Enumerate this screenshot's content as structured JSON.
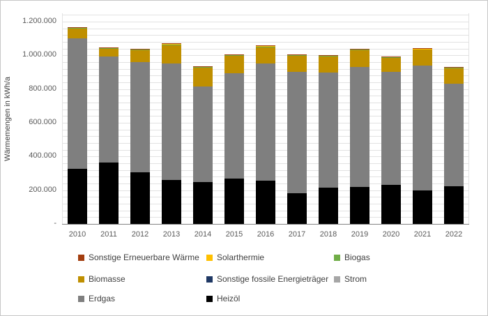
{
  "y_axis": {
    "title": "Wärmemengen in kWh/a",
    "tick_labels": [
      "-",
      "200.000",
      "400.000",
      "600.000",
      "800.000",
      "1.000.000",
      "1.200.000"
    ],
    "tick_values": [
      0,
      200000,
      400000,
      600000,
      800000,
      1000000,
      1200000
    ],
    "minor_gridline_step": 40000,
    "plot_max": 1250000
  },
  "chart_data": {
    "type": "bar",
    "stacked": true,
    "title": "",
    "xlabel": "",
    "ylabel": "Wärmemengen in kWh/a",
    "ylim": [
      0,
      1250000
    ],
    "grid": true,
    "legend_position": "bottom",
    "categories": [
      "2010",
      "2011",
      "2012",
      "2013",
      "2014",
      "2015",
      "2016",
      "2017",
      "2018",
      "2019",
      "2020",
      "2021",
      "2022"
    ],
    "series": [
      {
        "name": "Sonstige Erneuerbare Wärme",
        "color": "#a33e0f",
        "values": [
          4000,
          1000,
          1000,
          1000,
          4000,
          1000,
          3000,
          1000,
          1000,
          1000,
          1000,
          1000,
          1000
        ]
      },
      {
        "name": "Solarthermie",
        "color": "#ffc000",
        "values": [
          2000,
          1000,
          2000,
          2000,
          2000,
          2000,
          2000,
          2000,
          2000,
          2000,
          2000,
          3000,
          2000
        ]
      },
      {
        "name": "Biogas",
        "color": "#70ad47",
        "values": [
          2000,
          2000,
          3000,
          3000,
          4000,
          3000,
          3000,
          3000,
          3000,
          3000,
          3000,
          3000,
          3000
        ]
      },
      {
        "name": "Biomasse",
        "color": "#bf8f00",
        "values": [
          60000,
          48000,
          68000,
          108000,
          112000,
          104000,
          96000,
          96000,
          95000,
          100000,
          84000,
          94000,
          91000
        ]
      },
      {
        "name": "Sonstige fossile Energieträger",
        "color": "#1f3864",
        "values": [
          0,
          0,
          0,
          0,
          0,
          0,
          0,
          0,
          0,
          0,
          0,
          0,
          0
        ]
      },
      {
        "name": "Strom",
        "color": "#a6a6a6",
        "values": [
          0,
          0,
          0,
          0,
          0,
          0,
          0,
          0,
          0,
          0,
          0,
          0,
          0
        ]
      },
      {
        "name": "Erdgas",
        "color": "#7f7f7f",
        "values": [
          775000,
          628000,
          657000,
          692000,
          568000,
          625000,
          695000,
          721000,
          681000,
          711000,
          672000,
          742000,
          609000
        ]
      },
      {
        "name": "Heizöl",
        "color": "#000000",
        "values": [
          325000,
          364000,
          305000,
          261000,
          247000,
          268000,
          258000,
          181000,
          217000,
          219000,
          230000,
          197000,
          224000
        ]
      }
    ],
    "stack_order_bottom_to_top": [
      "Heizöl",
      "Erdgas",
      "Strom",
      "Sonstige fossile Energieträger",
      "Biomasse",
      "Biogas",
      "Solarthermie",
      "Sonstige Erneuerbare Wärme"
    ],
    "totals_approx": [
      1168000,
      1044000,
      1036000,
      1067000,
      937000,
      1003000,
      1057000,
      1004000,
      999000,
      1036000,
      992000,
      1040000,
      930000
    ]
  },
  "legend": {
    "rows": [
      [
        {
          "label": "Sonstige Erneuerbare Wärme",
          "color": "#a33e0f"
        },
        {
          "label": "Solarthermie",
          "color": "#ffc000"
        },
        {
          "label": "Biogas",
          "color": "#70ad47"
        }
      ],
      [
        {
          "label": "Biomasse",
          "color": "#bf8f00"
        },
        {
          "label": "Sonstige fossile Energieträger",
          "color": "#1f3864"
        },
        {
          "label": "Strom",
          "color": "#a6a6a6"
        }
      ],
      [
        {
          "label": "Erdgas",
          "color": "#7f7f7f"
        },
        {
          "label": "Heizöl",
          "color": "#000000"
        }
      ]
    ]
  }
}
